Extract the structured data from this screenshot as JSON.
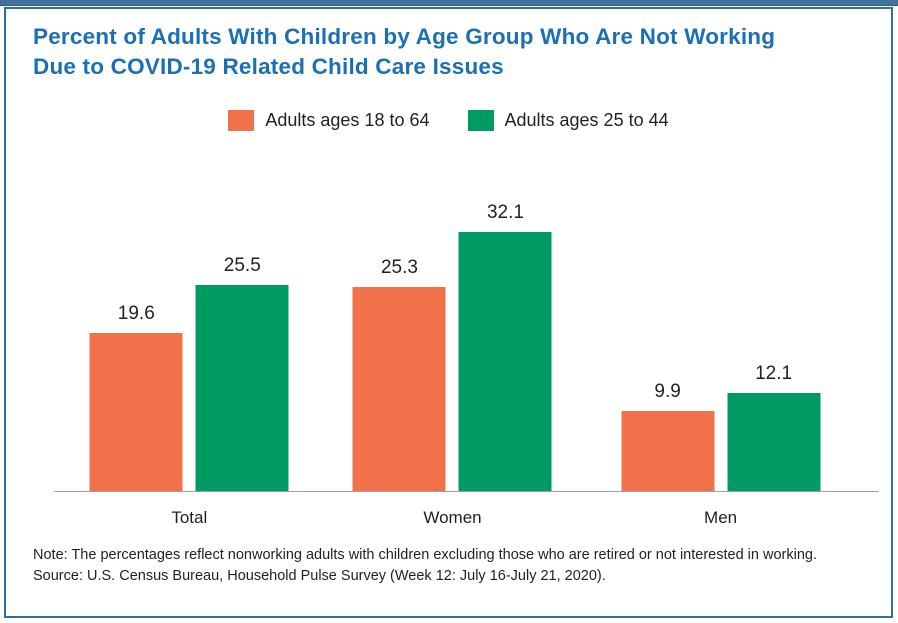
{
  "header": {
    "title_line1": "Percent of Adults With Children by Age Group Who Are Not Working",
    "title_line2": "Due to COVID-19 Related Child Care Issues"
  },
  "colors": {
    "title_blue": "#1B6FB5",
    "box_border_blue": "#2E6DA8",
    "top_rule_blue": "#41719C",
    "series_orange": "#F0714A",
    "series_green": "#009B63",
    "axis_gray": "#9DA0A3",
    "text_dark": "#231F20"
  },
  "chart_data": {
    "type": "bar",
    "title": "Percent of Adults With Children by Age Group Who Are Not Working Due to COVID-19 Related Child Care Issues",
    "categories": [
      "Total",
      "Women",
      "Men"
    ],
    "series": [
      {
        "name": "Adults ages 18 to 64",
        "color": "#F0714A",
        "values": [
          19.6,
          25.3,
          9.9
        ]
      },
      {
        "name": "Adults ages 25 to 44",
        "color": "#009B63",
        "values": [
          25.5,
          32.1,
          12.1
        ]
      }
    ],
    "xlabel": "",
    "ylabel": "",
    "ylim": [
      0,
      35
    ],
    "grid": false,
    "y_axis_shown": false,
    "value_labels": true,
    "legend_position": "top-center"
  },
  "footer": {
    "note": "Note: The percentages reflect nonworking adults with children excluding those who are retired or not interested in working.",
    "source": "Source: U.S. Census Bureau, Household Pulse Survey (Week 12: July 16-July 21, 2020)."
  }
}
